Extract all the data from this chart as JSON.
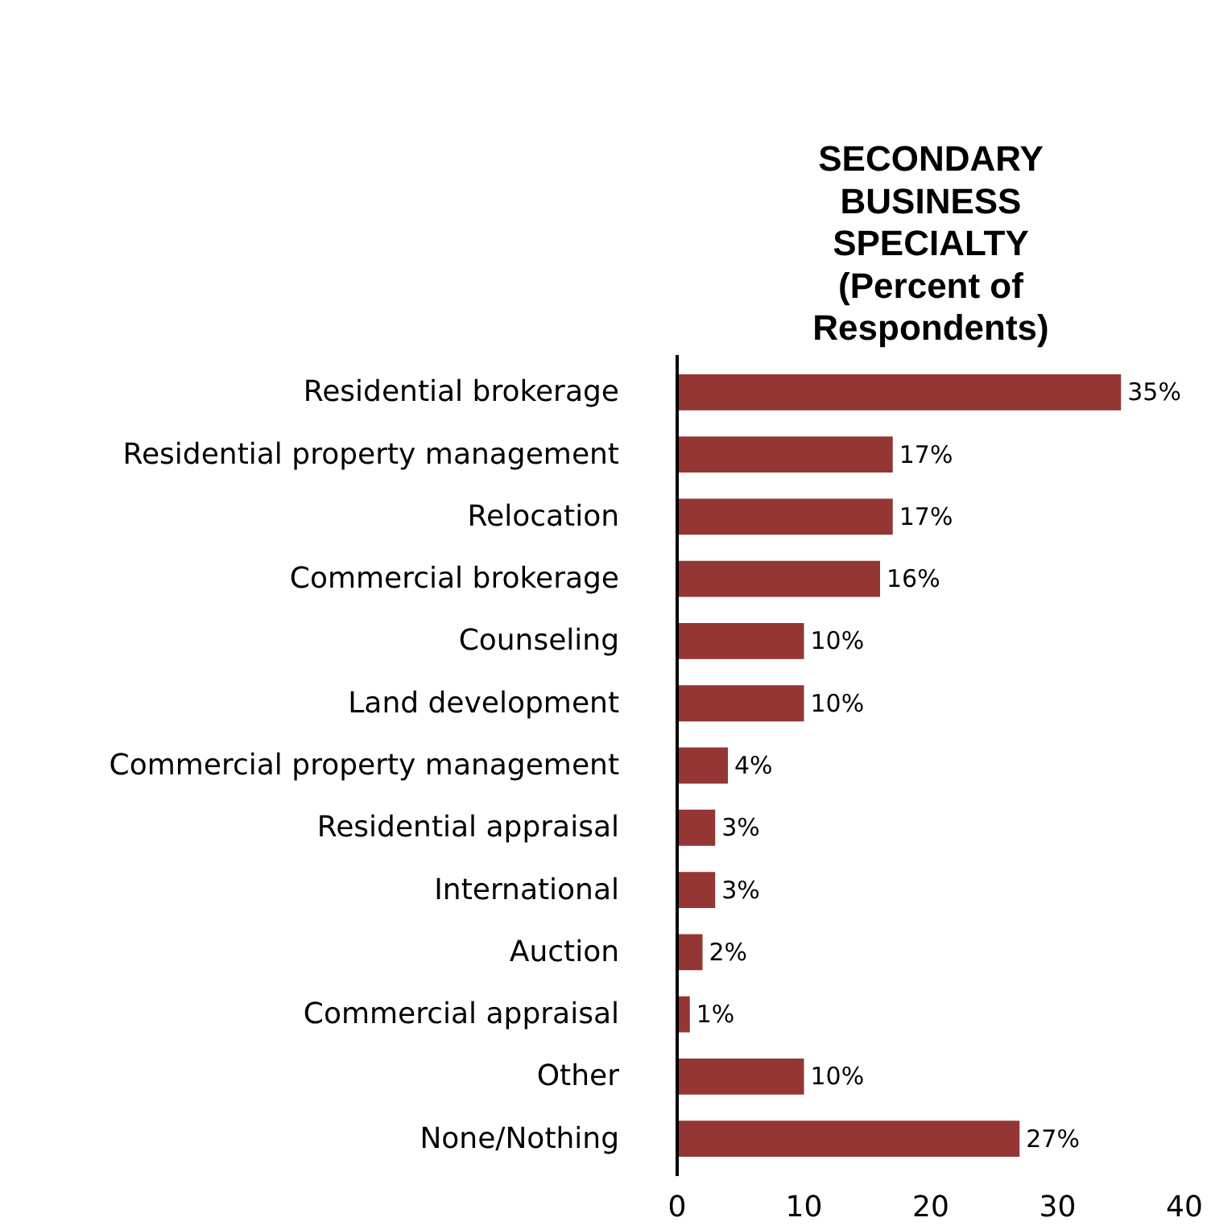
{
  "chart_data": {
    "type": "bar",
    "orientation": "horizontal",
    "title": "SECONDARY BUSINESS SPECIALTY (Percent of Respondents)",
    "categories": [
      "Residential brokerage",
      "Residential property management",
      "Relocation",
      "Commercial brokerage",
      "Counseling",
      "Land development",
      "Commercial property management",
      "Residential appraisal",
      "International",
      "Auction",
      "Commercial appraisal",
      "Other",
      "None/Nothing"
    ],
    "values": [
      35,
      17,
      17,
      16,
      10,
      10,
      4,
      3,
      3,
      2,
      1,
      10,
      27
    ],
    "value_labels": [
      "35%",
      "17%",
      "17%",
      "16%",
      "10%",
      "10%",
      "4%",
      "3%",
      "3%",
      "2%",
      "1%",
      "10%",
      "27%"
    ],
    "color": "#943634",
    "xlim": [
      0,
      40
    ],
    "xticks": [
      0,
      10,
      20,
      30,
      40
    ],
    "grid": false
  }
}
